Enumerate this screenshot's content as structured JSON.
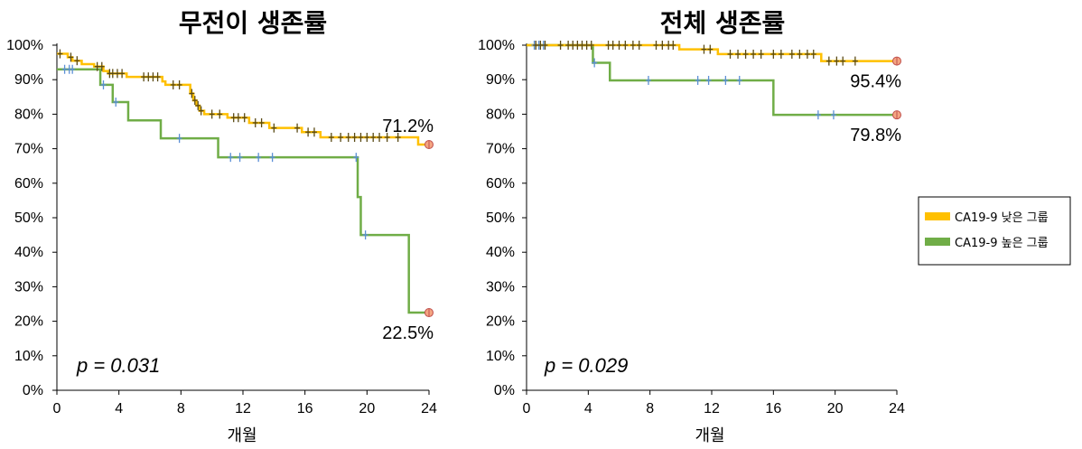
{
  "legend": {
    "items": [
      {
        "label": "CA19-9 낮은 그룹",
        "color": "#FFC000"
      },
      {
        "label": "CA19-9 높은 그룹",
        "color": "#70AD47"
      }
    ]
  },
  "chart_data": [
    {
      "type": "line",
      "title": "무전이  생존률",
      "xlabel": "개월",
      "ylabel": "",
      "xlim": [
        0,
        24
      ],
      "ylim": [
        0,
        100
      ],
      "xticks": [
        "0",
        "4",
        "8",
        "12",
        "16",
        "20",
        "24"
      ],
      "yticks": [
        "0%",
        "10%",
        "20%",
        "30%",
        "40%",
        "50%",
        "60%",
        "70%",
        "80%",
        "90%",
        "100%"
      ],
      "p_value": "p = 0.031",
      "series": [
        {
          "name": "CA19-9 낮은 그룹",
          "color": "#FFC000",
          "step": [
            [
              0,
              97.5
            ],
            [
              0.7,
              96.5
            ],
            [
              1.0,
              95.5
            ],
            [
              1.6,
              94.5
            ],
            [
              2.4,
              93.8
            ],
            [
              3.0,
              92.5
            ],
            [
              3.3,
              91.8
            ],
            [
              4.5,
              90.8
            ],
            [
              6.8,
              89.5
            ],
            [
              7.0,
              88.5
            ],
            [
              8.6,
              86
            ],
            [
              8.8,
              84
            ],
            [
              9.0,
              82.5
            ],
            [
              9.2,
              81
            ],
            [
              9.5,
              80
            ],
            [
              11.0,
              79
            ],
            [
              12.4,
              77.5
            ],
            [
              13.7,
              76
            ],
            [
              15.8,
              74.8
            ],
            [
              17.0,
              73.3
            ],
            [
              23.3,
              71.2
            ],
            [
              24.0,
              71.2
            ]
          ],
          "censor_marks": [
            [
              0.2,
              97.5
            ],
            [
              0.9,
              96.5
            ],
            [
              1.3,
              95.5
            ],
            [
              2.6,
              93.8
            ],
            [
              2.9,
              93.8
            ],
            [
              3.4,
              91.8
            ],
            [
              3.6,
              91.8
            ],
            [
              3.9,
              91.8
            ],
            [
              4.2,
              91.8
            ],
            [
              5.6,
              90.8
            ],
            [
              5.9,
              90.8
            ],
            [
              6.2,
              90.8
            ],
            [
              6.5,
              90.8
            ],
            [
              7.5,
              88.5
            ],
            [
              7.9,
              88.5
            ],
            [
              8.7,
              86
            ],
            [
              8.9,
              84
            ],
            [
              9.1,
              82.5
            ],
            [
              9.3,
              81
            ],
            [
              10.0,
              80
            ],
            [
              10.5,
              80
            ],
            [
              11.4,
              79
            ],
            [
              11.7,
              79
            ],
            [
              12.1,
              79
            ],
            [
              12.8,
              77.5
            ],
            [
              13.2,
              77.5
            ],
            [
              14.0,
              76
            ],
            [
              15.5,
              76
            ],
            [
              16.2,
              74.8
            ],
            [
              16.6,
              74.8
            ],
            [
              17.7,
              73.3
            ],
            [
              18.3,
              73.3
            ],
            [
              18.8,
              73.3
            ],
            [
              19.2,
              73.3
            ],
            [
              19.6,
              73.3
            ],
            [
              20.0,
              73.3
            ],
            [
              20.4,
              73.3
            ],
            [
              20.8,
              73.3
            ],
            [
              21.3,
              73.3
            ],
            [
              22.0,
              73.3
            ]
          ],
          "end_label": "71.2%",
          "end_value": 71.2
        },
        {
          "name": "CA19-9 높은 그룹",
          "color": "#70AD47",
          "step": [
            [
              0,
              93
            ],
            [
              2.8,
              88.5
            ],
            [
              3.6,
              83.5
            ],
            [
              4.6,
              78.2
            ],
            [
              6.7,
              73
            ],
            [
              10.4,
              67.5
            ],
            [
              19.4,
              56
            ],
            [
              19.6,
              45
            ],
            [
              22.7,
              22.5
            ],
            [
              24.0,
              22.5
            ]
          ],
          "censor_marks": [
            [
              0.5,
              93
            ],
            [
              0.8,
              93
            ],
            [
              1.0,
              93
            ],
            [
              3.0,
              88.5
            ],
            [
              3.8,
              83.5
            ],
            [
              7.9,
              73
            ],
            [
              11.2,
              67.5
            ],
            [
              11.8,
              67.5
            ],
            [
              13.0,
              67.5
            ],
            [
              13.9,
              67.5
            ],
            [
              19.3,
              67.5
            ],
            [
              19.9,
              45
            ]
          ],
          "end_label": "22.5%",
          "end_value": 22.5
        }
      ]
    },
    {
      "type": "line",
      "title": "전체 생존률",
      "xlabel": "개월",
      "ylabel": "",
      "xlim": [
        0,
        24
      ],
      "ylim": [
        0,
        100
      ],
      "xticks": [
        "0",
        "4",
        "8",
        "12",
        "16",
        "20",
        "24"
      ],
      "yticks": [
        "0%",
        "10%",
        "20%",
        "30%",
        "40%",
        "50%",
        "60%",
        "70%",
        "80%",
        "90%",
        "100%"
      ],
      "p_value": "p = 0.029",
      "series": [
        {
          "name": "CA19-9 낮은 그룹",
          "color": "#FFC000",
          "step": [
            [
              0,
              100
            ],
            [
              9.9,
              98.8
            ],
            [
              12.4,
              97.4
            ],
            [
              19.1,
              95.4
            ],
            [
              24.0,
              95.4
            ]
          ],
          "censor_marks": [
            [
              0.6,
              100
            ],
            [
              0.9,
              100
            ],
            [
              1.2,
              100
            ],
            [
              2.2,
              100
            ],
            [
              2.7,
              100
            ],
            [
              3.0,
              100
            ],
            [
              3.3,
              100
            ],
            [
              3.6,
              100
            ],
            [
              3.9,
              100
            ],
            [
              4.2,
              100
            ],
            [
              5.3,
              100
            ],
            [
              5.6,
              100
            ],
            [
              6.0,
              100
            ],
            [
              6.4,
              100
            ],
            [
              6.9,
              100
            ],
            [
              7.3,
              100
            ],
            [
              8.4,
              100
            ],
            [
              8.8,
              100
            ],
            [
              9.2,
              100
            ],
            [
              9.5,
              100
            ],
            [
              11.5,
              98.8
            ],
            [
              11.9,
              98.8
            ],
            [
              13.2,
              97.4
            ],
            [
              13.7,
              97.4
            ],
            [
              14.2,
              97.4
            ],
            [
              14.7,
              97.4
            ],
            [
              15.2,
              97.4
            ],
            [
              16.0,
              97.4
            ],
            [
              16.5,
              97.4
            ],
            [
              17.2,
              97.4
            ],
            [
              17.7,
              97.4
            ],
            [
              18.2,
              97.4
            ],
            [
              18.6,
              97.4
            ],
            [
              19.6,
              95.4
            ],
            [
              20.1,
              95.4
            ],
            [
              20.5,
              95.4
            ],
            [
              21.3,
              95.4
            ]
          ],
          "end_label": "95.4%",
          "end_value": 95.4
        },
        {
          "name": "CA19-9 높은 그룹",
          "color": "#70AD47",
          "step": [
            [
              0,
              100
            ],
            [
              4.3,
              94.9
            ],
            [
              5.4,
              89.8
            ],
            [
              16.0,
              79.8
            ],
            [
              24.0,
              79.8
            ]
          ],
          "censor_marks": [
            [
              0.5,
              100
            ],
            [
              0.8,
              100
            ],
            [
              1.1,
              100
            ],
            [
              4.4,
              94.9
            ],
            [
              7.9,
              89.8
            ],
            [
              11.1,
              89.8
            ],
            [
              11.8,
              89.8
            ],
            [
              12.9,
              89.8
            ],
            [
              13.8,
              89.8
            ],
            [
              18.9,
              79.8
            ],
            [
              19.9,
              79.8
            ]
          ],
          "end_label": "79.8%",
          "end_value": 79.8
        }
      ]
    }
  ]
}
